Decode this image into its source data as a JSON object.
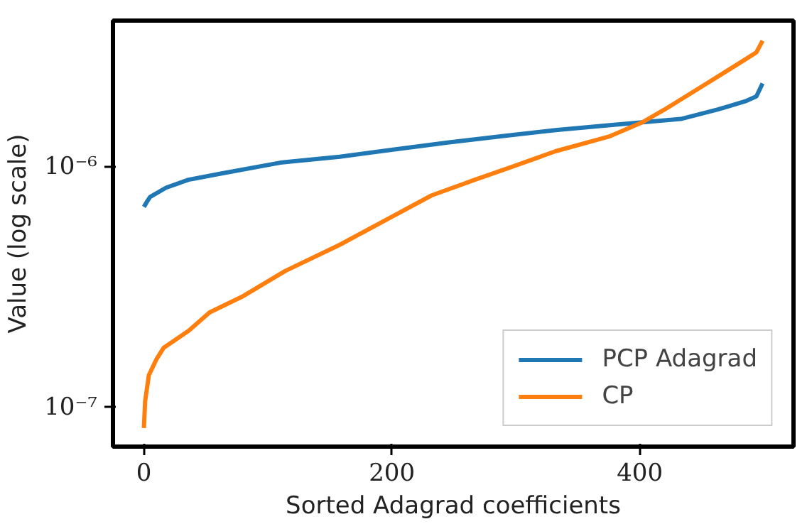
{
  "chart_data": {
    "type": "line",
    "xlabel": "Sorted Adagrad coefficients",
    "ylabel": "Value (log scale)",
    "log": "y",
    "xlim": [
      -24.95,
      523.95
    ],
    "ylim": [
      6.87e-08,
      4.05e-06
    ],
    "xticks": [
      0,
      200,
      400
    ],
    "yticks": [
      {
        "value": 1e-07,
        "label": "10⁻⁷"
      },
      {
        "value": 1e-06,
        "label": "10⁻⁶"
      }
    ],
    "grid": false,
    "legend": "bottom right",
    "line_style": "solid",
    "marker": "none",
    "series": [
      {
        "name": "PCP Adagrad",
        "color": "#1f77b4",
        "x": [
          0,
          3,
          5,
          18,
          36,
          62,
          110,
          158,
          202,
          245,
          289,
          332,
          376,
          402,
          433,
          463,
          485,
          494,
          499
        ],
        "values": [
          6.81e-07,
          7.23e-07,
          7.49e-07,
          8.19e-07,
          8.83e-07,
          9.37e-07,
          1.04e-06,
          1.1e-06,
          1.18e-06,
          1.26e-06,
          1.34e-06,
          1.42e-06,
          1.49e-06,
          1.53e-06,
          1.58e-06,
          1.73e-06,
          1.87e-06,
          1.96e-06,
          2.22e-06
        ]
      },
      {
        "name": "CP",
        "color": "#ff7f0e",
        "x": [
          0,
          1,
          4,
          10,
          16,
          36,
          53,
          79,
          114,
          158,
          197,
          232,
          267,
          297,
          332,
          376,
          402,
          420,
          454,
          481,
          494,
          499
        ],
        "values": [
          8.2e-08,
          1.06e-07,
          1.36e-07,
          1.58e-07,
          1.77e-07,
          2.08e-07,
          2.48e-07,
          2.88e-07,
          3.69e-07,
          4.74e-07,
          6.08e-07,
          7.6e-07,
          8.83e-07,
          1e-06,
          1.16e-06,
          1.34e-06,
          1.53e-06,
          1.73e-06,
          2.22e-06,
          2.71e-06,
          2.99e-06,
          3.34e-06
        ]
      }
    ]
  }
}
